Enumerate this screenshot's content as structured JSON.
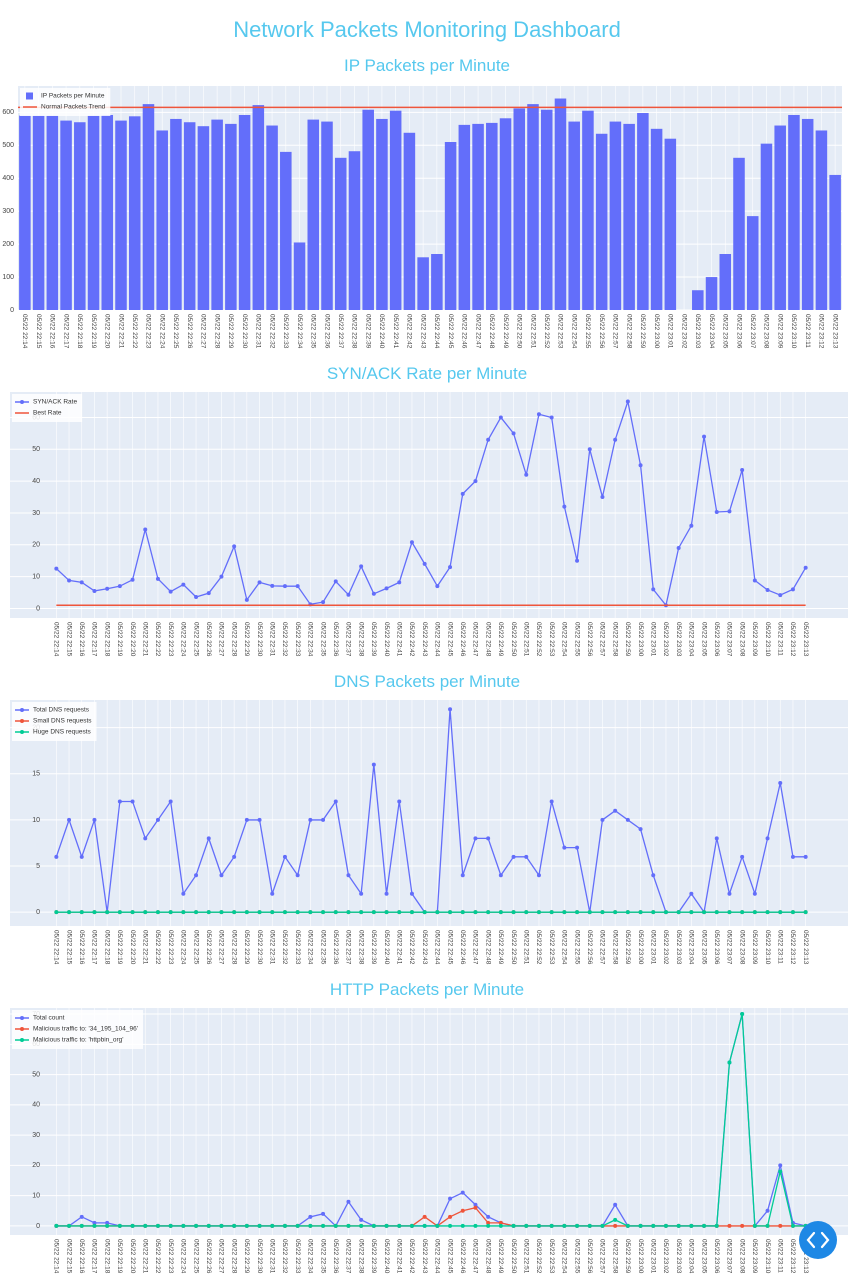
{
  "title": "Network Packets Monitoring Dashboard",
  "chart_data": [
    {
      "type": "bar",
      "title": "IP Packets per Minute",
      "legend": "top-left",
      "categories": [
        "05/22 22:14",
        "05/22 22:15",
        "05/22 22:16",
        "05/22 22:17",
        "05/22 22:18",
        "05/22 22:19",
        "05/22 22:20",
        "05/22 22:21",
        "05/22 22:22",
        "05/22 22:23",
        "05/22 22:24",
        "05/22 22:25",
        "05/22 22:26",
        "05/22 22:27",
        "05/22 22:28",
        "05/22 22:29",
        "05/22 22:30",
        "05/22 22:31",
        "05/22 22:32",
        "05/22 22:33",
        "05/22 22:34",
        "05/22 22:35",
        "05/22 22:36",
        "05/22 22:37",
        "05/22 22:38",
        "05/22 22:39",
        "05/22 22:40",
        "05/22 22:41",
        "05/22 22:42",
        "05/22 22:43",
        "05/22 22:44",
        "05/22 22:45",
        "05/22 22:46",
        "05/22 22:47",
        "05/22 22:48",
        "05/22 22:49",
        "05/22 22:50",
        "05/22 22:51",
        "05/22 22:52",
        "05/22 22:53",
        "05/22 22:54",
        "05/22 22:55",
        "05/22 22:56",
        "05/22 22:57",
        "05/22 22:58",
        "05/22 22:59",
        "05/22 23:00",
        "05/22 23:01",
        "05/22 23:02",
        "05/22 23:03",
        "05/22 23:04",
        "05/22 23:05",
        "05/22 23:06",
        "05/22 23:07",
        "05/22 23:08",
        "05/22 23:09",
        "05/22 23:10",
        "05/22 23:11",
        "05/22 23:12",
        "05/22 23:13"
      ],
      "series": [
        {
          "name": "IP Packets per Minute",
          "color": "#636efa",
          "values": [
            590,
            590,
            590,
            575,
            570,
            590,
            592,
            575,
            588,
            625,
            545,
            580,
            570,
            558,
            578,
            565,
            592,
            622,
            560,
            480,
            205,
            578,
            572,
            462,
            482,
            608,
            580,
            605,
            538,
            160,
            170,
            510,
            562,
            565,
            568,
            582,
            612,
            625,
            608,
            642,
            572,
            605,
            535,
            572,
            565,
            598,
            550,
            520,
            0,
            60,
            100,
            170,
            462,
            285,
            505,
            560,
            592,
            580,
            545,
            410
          ]
        }
      ],
      "reference_line": {
        "name": "Normal Packets Trend",
        "value": 615,
        "color": "#ef553b"
      },
      "ylim": [
        0,
        680
      ],
      "yticks": [
        0,
        100,
        200,
        300,
        400,
        500,
        600
      ],
      "grid": true
    },
    {
      "type": "line",
      "title": "SYN/ACK Rate per Minute",
      "legend": "top-left",
      "categories": [
        "05/22 22:14",
        "05/22 22:15",
        "05/22 22:16",
        "05/22 22:17",
        "05/22 22:18",
        "05/22 22:19",
        "05/22 22:20",
        "05/22 22:21",
        "05/22 22:22",
        "05/22 22:23",
        "05/22 22:24",
        "05/22 22:25",
        "05/22 22:26",
        "05/22 22:27",
        "05/22 22:28",
        "05/22 22:29",
        "05/22 22:30",
        "05/22 22:31",
        "05/22 22:32",
        "05/22 22:33",
        "05/22 22:34",
        "05/22 22:35",
        "05/22 22:36",
        "05/22 22:37",
        "05/22 22:38",
        "05/22 22:39",
        "05/22 22:40",
        "05/22 22:41",
        "05/22 22:42",
        "05/22 22:43",
        "05/22 22:44",
        "05/22 22:45",
        "05/22 22:46",
        "05/22 22:47",
        "05/22 22:48",
        "05/22 22:49",
        "05/22 22:50",
        "05/22 22:51",
        "05/22 22:52",
        "05/22 22:53",
        "05/22 22:54",
        "05/22 22:55",
        "05/22 22:56",
        "05/22 22:57",
        "05/22 22:58",
        "05/22 22:59",
        "05/22 23:00",
        "05/22 23:01",
        "05/22 23:02",
        "05/22 23:03",
        "05/22 23:04",
        "05/22 23:05",
        "05/22 23:06",
        "05/22 23:07",
        "05/22 23:08",
        "05/22 23:09",
        "05/22 23:10",
        "05/22 23:11",
        "05/22 23:12",
        "05/22 23:13"
      ],
      "series": [
        {
          "name": "SYN/ACK Rate",
          "color": "#636efa",
          "values": [
            12.5,
            8.8,
            8.2,
            5.5,
            6.2,
            7,
            9,
            24.8,
            9.3,
            5.3,
            7.5,
            3.6,
            4.8,
            10,
            19.5,
            2.7,
            8.2,
            7.1,
            7,
            7,
            1.3,
            2,
            8.5,
            4.3,
            13.2,
            4.6,
            6.3,
            8.2,
            20.8,
            14,
            7,
            13,
            36,
            40,
            53,
            60,
            55,
            42,
            61,
            60,
            32,
            15,
            50,
            35,
            53,
            65,
            45,
            6,
            1,
            19,
            26,
            54,
            30.3,
            30.5,
            43.5,
            8.8,
            5.8,
            4.2,
            6,
            12.8
          ]
        }
      ],
      "reference_line": {
        "name": "Best Rate",
        "value": 1,
        "color": "#ef553b"
      },
      "ylim": [
        -3,
        68
      ],
      "yticks": [
        0,
        10,
        20,
        30,
        40,
        50,
        60
      ],
      "grid": true
    },
    {
      "type": "line",
      "title": "DNS Packets per Minute",
      "legend": "top-left",
      "categories": [
        "05/22 22:14",
        "05/22 22:15",
        "05/22 22:16",
        "05/22 22:17",
        "05/22 22:18",
        "05/22 22:19",
        "05/22 22:20",
        "05/22 22:21",
        "05/22 22:22",
        "05/22 22:23",
        "05/22 22:24",
        "05/22 22:25",
        "05/22 22:26",
        "05/22 22:27",
        "05/22 22:28",
        "05/22 22:29",
        "05/22 22:30",
        "05/22 22:31",
        "05/22 22:32",
        "05/22 22:33",
        "05/22 22:34",
        "05/22 22:35",
        "05/22 22:36",
        "05/22 22:37",
        "05/22 22:38",
        "05/22 22:39",
        "05/22 22:40",
        "05/22 22:41",
        "05/22 22:42",
        "05/22 22:43",
        "05/22 22:44",
        "05/22 22:45",
        "05/22 22:46",
        "05/22 22:47",
        "05/22 22:48",
        "05/22 22:49",
        "05/22 22:50",
        "05/22 22:51",
        "05/22 22:52",
        "05/22 22:53",
        "05/22 22:54",
        "05/22 22:55",
        "05/22 22:56",
        "05/22 22:57",
        "05/22 22:58",
        "05/22 22:59",
        "05/22 23:00",
        "05/22 23:01",
        "05/22 23:02",
        "05/22 23:03",
        "05/22 23:04",
        "05/22 23:05",
        "05/22 23:06",
        "05/22 23:07",
        "05/22 23:08",
        "05/22 23:09",
        "05/22 23:10",
        "05/22 23:11",
        "05/22 23:12",
        "05/22 23:13"
      ],
      "series": [
        {
          "name": "Total DNS requests",
          "color": "#636efa",
          "values": [
            6,
            10,
            6,
            10,
            0,
            12,
            12,
            8,
            10,
            12,
            2,
            4,
            8,
            4,
            6,
            10,
            10,
            2,
            6,
            4,
            10,
            10,
            12,
            4,
            2,
            16,
            2,
            12,
            2,
            0,
            0,
            22,
            4,
            8,
            8,
            4,
            6,
            6,
            4,
            12,
            7,
            7,
            0,
            10,
            11,
            10,
            9,
            4,
            0,
            0,
            2,
            0,
            8,
            2,
            6,
            2,
            8,
            14,
            6,
            6
          ]
        },
        {
          "name": "Small DNS requests",
          "color": "#ef553b",
          "values": [
            0,
            0,
            0,
            0,
            0,
            0,
            0,
            0,
            0,
            0,
            0,
            0,
            0,
            0,
            0,
            0,
            0,
            0,
            0,
            0,
            0,
            0,
            0,
            0,
            0,
            0,
            0,
            0,
            0,
            0,
            0,
            0,
            0,
            0,
            0,
            0,
            0,
            0,
            0,
            0,
            0,
            0,
            0,
            0,
            0,
            0,
            0,
            0,
            0,
            0,
            0,
            0,
            0,
            0,
            0,
            0,
            0,
            0,
            0,
            0
          ]
        },
        {
          "name": "Huge DNS requests",
          "color": "#00cc96",
          "values": [
            0,
            0,
            0,
            0,
            0,
            0,
            0,
            0,
            0,
            0,
            0,
            0,
            0,
            0,
            0,
            0,
            0,
            0,
            0,
            0,
            0,
            0,
            0,
            0,
            0,
            0,
            0,
            0,
            0,
            0,
            0,
            0,
            0,
            0,
            0,
            0,
            0,
            0,
            0,
            0,
            0,
            0,
            0,
            0,
            0,
            0,
            0,
            0,
            0,
            0,
            0,
            0,
            0,
            0,
            0,
            0,
            0,
            0,
            0,
            0
          ]
        }
      ],
      "ylim": [
        -1.5,
        23
      ],
      "yticks": [
        0,
        5,
        10,
        15,
        20
      ],
      "grid": true
    },
    {
      "type": "line",
      "title": "HTTP Packets per Minute",
      "legend": "top-left",
      "categories": [
        "05/22 22:14",
        "05/22 22:15",
        "05/22 22:16",
        "05/22 22:17",
        "05/22 22:18",
        "05/22 22:19",
        "05/22 22:20",
        "05/22 22:21",
        "05/22 22:22",
        "05/22 22:23",
        "05/22 22:24",
        "05/22 22:25",
        "05/22 22:26",
        "05/22 22:27",
        "05/22 22:28",
        "05/22 22:29",
        "05/22 22:30",
        "05/22 22:31",
        "05/22 22:32",
        "05/22 22:33",
        "05/22 22:34",
        "05/22 22:35",
        "05/22 22:36",
        "05/22 22:37",
        "05/22 22:38",
        "05/22 22:39",
        "05/22 22:40",
        "05/22 22:41",
        "05/22 22:42",
        "05/22 22:43",
        "05/22 22:44",
        "05/22 22:45",
        "05/22 22:46",
        "05/22 22:47",
        "05/22 22:48",
        "05/22 22:49",
        "05/22 22:50",
        "05/22 22:51",
        "05/22 22:52",
        "05/22 22:53",
        "05/22 22:54",
        "05/22 22:55",
        "05/22 22:56",
        "05/22 22:57",
        "05/22 22:58",
        "05/22 22:59",
        "05/22 23:00",
        "05/22 23:01",
        "05/22 23:02",
        "05/22 23:03",
        "05/22 23:04",
        "05/22 23:05",
        "05/22 23:06",
        "05/22 23:07",
        "05/22 23:08",
        "05/22 23:09",
        "05/22 23:10",
        "05/22 23:11",
        "05/22 23:12",
        "05/22 23:13"
      ],
      "series": [
        {
          "name": "Total count",
          "color": "#636efa",
          "values": [
            0,
            0,
            3,
            1,
            1,
            0,
            0,
            0,
            0,
            0,
            0,
            0,
            0,
            0,
            0,
            0,
            0,
            0,
            0,
            0,
            3,
            4,
            0,
            8,
            2,
            0,
            0,
            0,
            0,
            0,
            0,
            9,
            11,
            7,
            3,
            1,
            0,
            0,
            0,
            0,
            0,
            0,
            0,
            0,
            7,
            0,
            0,
            0,
            0,
            0,
            0,
            0,
            0,
            54,
            70,
            0,
            5,
            20,
            1,
            0
          ]
        },
        {
          "name": "Malicious traffic to: '34_195_104_96'",
          "color": "#ef553b",
          "values": [
            0,
            0,
            0,
            0,
            0,
            0,
            0,
            0,
            0,
            0,
            0,
            0,
            0,
            0,
            0,
            0,
            0,
            0,
            0,
            0,
            0,
            0,
            0,
            0,
            0,
            0,
            0,
            0,
            0,
            3,
            0,
            3,
            5,
            6,
            1,
            1,
            0,
            0,
            0,
            0,
            0,
            0,
            0,
            0,
            0,
            0,
            0,
            0,
            0,
            0,
            0,
            0,
            0,
            0,
            0,
            0,
            0,
            0,
            0,
            0
          ]
        },
        {
          "name": "Malicious traffic to: 'httpbin_org'",
          "color": "#00cc96",
          "values": [
            0,
            0,
            0,
            0,
            0,
            0,
            0,
            0,
            0,
            0,
            0,
            0,
            0,
            0,
            0,
            0,
            0,
            0,
            0,
            0,
            0,
            0,
            0,
            0,
            0,
            0,
            0,
            0,
            0,
            0,
            0,
            0,
            0,
            0,
            0,
            0,
            0,
            0,
            0,
            0,
            0,
            0,
            0,
            0,
            2,
            0,
            0,
            0,
            0,
            0,
            0,
            0,
            0,
            54,
            70,
            0,
            0,
            18,
            0,
            0
          ]
        }
      ],
      "ylim": [
        -3,
        72
      ],
      "yticks": [
        0,
        10,
        20,
        30,
        40,
        50,
        60,
        70
      ],
      "grid": true
    }
  ]
}
